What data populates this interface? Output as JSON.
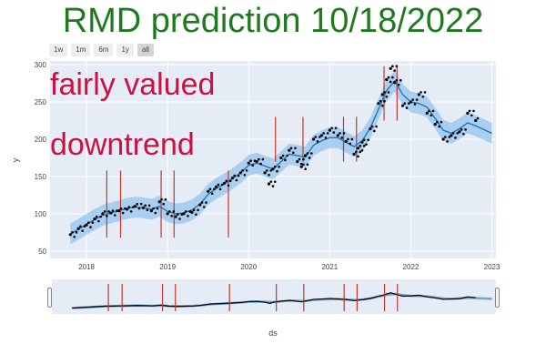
{
  "title": "RMD prediction 10/18/2022",
  "range_buttons": [
    {
      "label": "1w",
      "active": false
    },
    {
      "label": "1m",
      "active": false
    },
    {
      "label": "6m",
      "active": false
    },
    {
      "label": "1y",
      "active": false
    },
    {
      "label": "all",
      "active": true
    }
  ],
  "annotations": {
    "valuation": "fairly valued",
    "trend": "downtrend"
  },
  "colors": {
    "title": "#1f7a1f",
    "annotation": "#cc1044",
    "actual_points": "#000000",
    "forecast_line": "#1f77b4",
    "uncertainty_band": "#9fc9ee",
    "changepoints": "#c0392b",
    "plot_background": "#e5ecf6"
  },
  "chart_data": {
    "type": "line",
    "title": "RMD prediction 10/18/2022",
    "xlabel": "ds",
    "ylabel": "y",
    "xlim": [
      2017.55,
      2023.05
    ],
    "ylim": [
      40,
      305
    ],
    "x_tick_labels": [
      "2018",
      "2019",
      "2020",
      "2021",
      "2022",
      "2023"
    ],
    "x_tick_values": [
      2018,
      2019,
      2020,
      2021,
      2022,
      2023
    ],
    "y_tick_values": [
      50,
      100,
      150,
      200,
      250,
      300
    ],
    "grid": true,
    "series": [
      {
        "role": "actual",
        "mark": "scatter",
        "x": [
          2017.8,
          2017.9,
          2018.0,
          2018.1,
          2018.2,
          2018.3,
          2018.4,
          2018.5,
          2018.6,
          2018.7,
          2018.8,
          2018.9,
          2019.0,
          2019.1,
          2019.2,
          2019.3,
          2019.4,
          2019.5,
          2019.6,
          2019.7,
          2019.8,
          2019.9,
          2020.0,
          2020.1,
          2020.2,
          2020.25,
          2020.3,
          2020.4,
          2020.5,
          2020.6,
          2020.65,
          2020.7,
          2020.8,
          2020.9,
          2021.0,
          2021.1,
          2021.2,
          2021.3,
          2021.35,
          2021.4,
          2021.5,
          2021.6,
          2021.65,
          2021.7,
          2021.75,
          2021.8,
          2021.9,
          2022.0,
          2022.1,
          2022.2,
          2022.3,
          2022.4,
          2022.5,
          2022.6,
          2022.7,
          2022.8
        ],
        "y": [
          72,
          80,
          85,
          93,
          100,
          101,
          104,
          106,
          110,
          108,
          104,
          116,
          100,
          96,
          100,
          102,
          112,
          130,
          136,
          141,
          148,
          155,
          168,
          170,
          155,
          140,
          160,
          175,
          185,
          170,
          163,
          178,
          200,
          205,
          212,
          205,
          197,
          180,
          188,
          196,
          214,
          248,
          260,
          280,
          295,
          276,
          245,
          250,
          260,
          235,
          220,
          200,
          205,
          210,
          235,
          225
        ]
      },
      {
        "role": "forecast",
        "mark": "line",
        "x": [
          2017.8,
          2017.9,
          2018.0,
          2018.1,
          2018.2,
          2018.3,
          2018.4,
          2018.5,
          2018.6,
          2018.7,
          2018.8,
          2018.9,
          2019.0,
          2019.1,
          2019.2,
          2019.3,
          2019.4,
          2019.5,
          2019.6,
          2019.7,
          2019.8,
          2019.9,
          2020.0,
          2020.1,
          2020.2,
          2020.3,
          2020.4,
          2020.5,
          2020.6,
          2020.7,
          2020.8,
          2020.9,
          2021.0,
          2021.1,
          2021.2,
          2021.3,
          2021.4,
          2021.5,
          2021.6,
          2021.7,
          2021.8,
          2021.9,
          2022.0,
          2022.1,
          2022.2,
          2022.3,
          2022.4,
          2022.5,
          2022.6,
          2022.7,
          2022.8,
          2022.9,
          2023.0
        ],
        "y": [
          73,
          79,
          86,
          92,
          98,
          101,
          104,
          107,
          109,
          108,
          106,
          110,
          103,
          100,
          101,
          105,
          113,
          126,
          134,
          140,
          147,
          155,
          165,
          168,
          164,
          160,
          170,
          180,
          178,
          176,
          192,
          198,
          202,
          202,
          196,
          190,
          198,
          215,
          240,
          265,
          278,
          260,
          250,
          248,
          243,
          228,
          212,
          208,
          214,
          222,
          218,
          213,
          208
        ]
      },
      {
        "role": "uncertainty_band",
        "mark": "area",
        "half_width": 14
      }
    ],
    "changepoints": [
      2018.25,
      2018.42,
      2018.92,
      2019.08,
      2019.75,
      2020.33,
      2020.67,
      2021.17,
      2021.33,
      2021.67,
      2021.83
    ],
    "range_slider": {
      "shown": true
    }
  }
}
